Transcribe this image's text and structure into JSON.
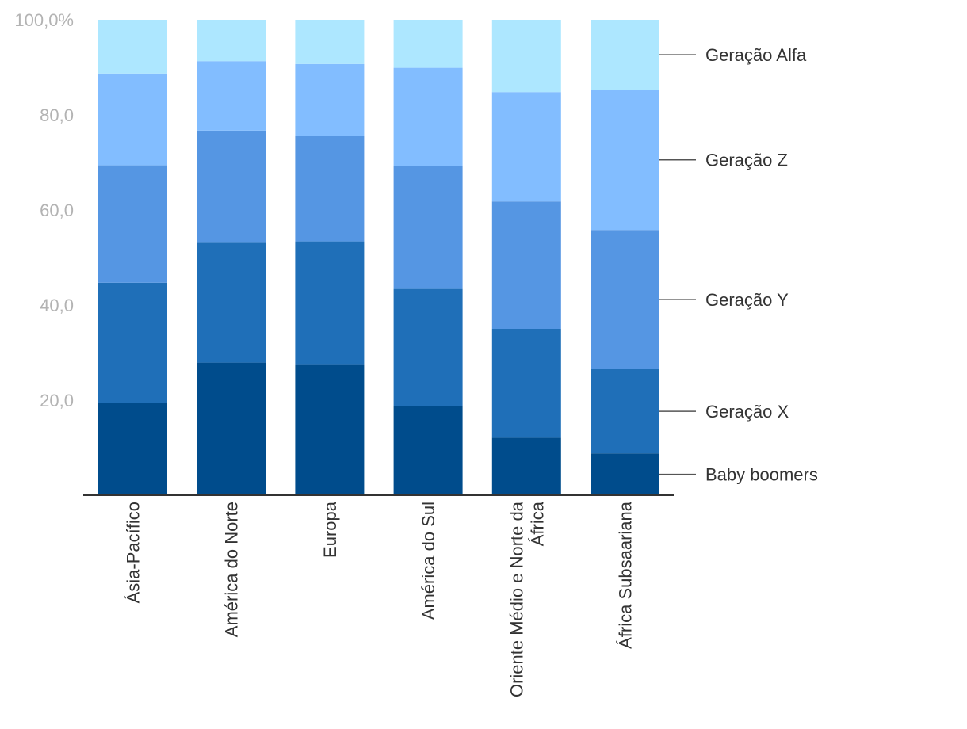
{
  "chart_data": {
    "type": "bar",
    "stacked": true,
    "categories": [
      "Ásia-Pacífico",
      "América do Norte",
      "Europa",
      "América do Sul",
      "Oriente Médio e Norte da África",
      "África Subsaariana"
    ],
    "category_lines": [
      [
        "Ásia-Pacífico"
      ],
      [
        "América do Norte"
      ],
      [
        "Europa"
      ],
      [
        "América do Sul"
      ],
      [
        "Oriente Médio e Norte da",
        "África"
      ],
      [
        "África Subsaariana"
      ]
    ],
    "series": [
      {
        "name": "Baby boomers",
        "color": "#004c8c",
        "values": [
          19.4,
          27.9,
          27.4,
          18.7,
          12.1,
          8.8
        ]
      },
      {
        "name": "Geração X",
        "color": "#1f6fb8",
        "values": [
          25.3,
          25.2,
          26.0,
          24.7,
          22.9,
          17.7
        ]
      },
      {
        "name": "Geração Y",
        "color": "#5596e3",
        "values": [
          24.7,
          23.6,
          22.1,
          25.9,
          26.8,
          29.3
        ]
      },
      {
        "name": "Geração Z",
        "color": "#82bdff",
        "values": [
          19.3,
          14.6,
          15.2,
          20.6,
          23.0,
          29.5
        ]
      },
      {
        "name": "Geração Alfa",
        "color": "#ade7ff",
        "values": [
          11.3,
          8.7,
          9.3,
          10.1,
          15.2,
          14.7
        ]
      }
    ],
    "y_ticks": [
      {
        "value": 20,
        "label": "20,0"
      },
      {
        "value": 40,
        "label": "40,0"
      },
      {
        "value": 60,
        "label": "60,0"
      },
      {
        "value": 80,
        "label": "80,0"
      },
      {
        "value": 100,
        "label": "100,0%"
      }
    ],
    "ylim": [
      0,
      100
    ],
    "grid": false,
    "legend_placement": "right"
  }
}
